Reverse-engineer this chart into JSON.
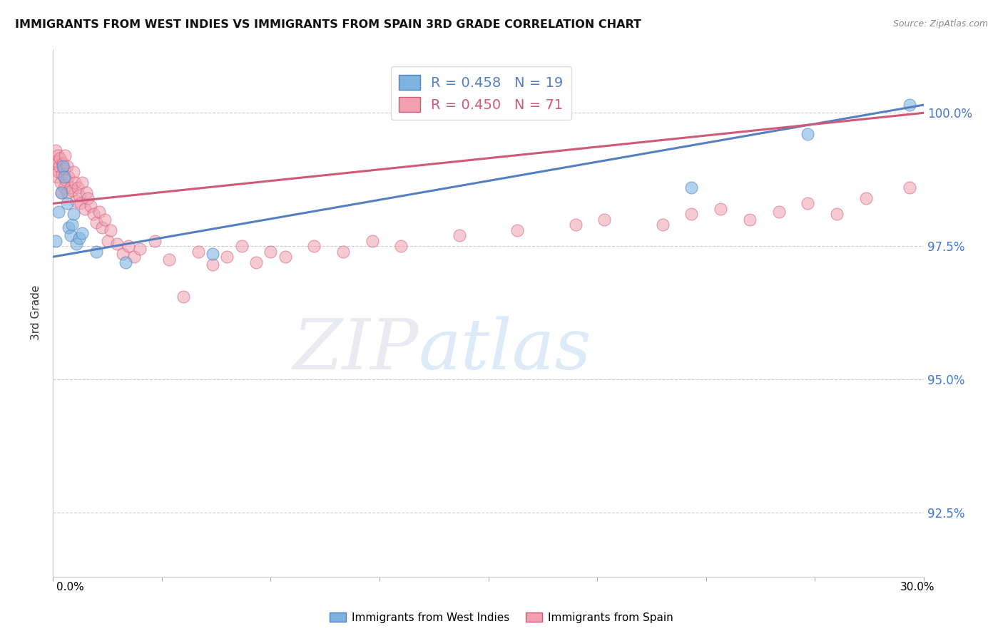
{
  "title": "IMMIGRANTS FROM WEST INDIES VS IMMIGRANTS FROM SPAIN 3RD GRADE CORRELATION CHART",
  "source": "Source: ZipAtlas.com",
  "ylabel": "3rd Grade",
  "y_ticks": [
    92.5,
    95.0,
    97.5,
    100.0
  ],
  "y_tick_labels": [
    "92.5%",
    "95.0%",
    "97.5%",
    "100.0%"
  ],
  "xlim": [
    0.0,
    30.0
  ],
  "ylim": [
    91.3,
    101.2
  ],
  "blue_R": 0.458,
  "blue_N": 19,
  "pink_R": 0.45,
  "pink_N": 71,
  "blue_color": "#7EB3E0",
  "pink_color": "#F0A0B0",
  "blue_line_color": "#5580C0",
  "pink_line_color": "#D05878",
  "legend_label_blue": "Immigrants from West Indies",
  "legend_label_pink": "Immigrants from Spain",
  "watermark_zip": "ZIP",
  "watermark_atlas": "atlas",
  "blue_x": [
    0.1,
    0.2,
    0.3,
    0.35,
    0.4,
    0.5,
    0.55,
    0.6,
    0.65,
    0.7,
    0.8,
    0.9,
    1.0,
    1.5,
    2.5,
    5.5,
    22.0,
    26.0,
    29.5
  ],
  "blue_y": [
    97.6,
    98.15,
    98.5,
    99.0,
    98.8,
    98.3,
    97.85,
    97.7,
    97.9,
    98.1,
    97.55,
    97.65,
    97.75,
    97.4,
    97.2,
    97.35,
    98.6,
    99.6,
    100.15
  ],
  "pink_x": [
    0.05,
    0.1,
    0.12,
    0.15,
    0.18,
    0.2,
    0.22,
    0.25,
    0.28,
    0.3,
    0.32,
    0.35,
    0.38,
    0.4,
    0.42,
    0.45,
    0.48,
    0.5,
    0.55,
    0.6,
    0.65,
    0.7,
    0.75,
    0.8,
    0.85,
    0.9,
    0.95,
    1.0,
    1.1,
    1.15,
    1.2,
    1.3,
    1.4,
    1.5,
    1.6,
    1.7,
    1.8,
    1.9,
    2.0,
    2.2,
    2.4,
    2.6,
    2.8,
    3.0,
    3.5,
    4.0,
    4.5,
    5.0,
    5.5,
    6.0,
    6.5,
    7.0,
    7.5,
    8.0,
    9.0,
    10.0,
    11.0,
    12.0,
    14.0,
    16.0,
    18.0,
    19.0,
    21.0,
    22.0,
    23.0,
    24.0,
    25.0,
    26.0,
    27.0,
    28.0,
    29.5
  ],
  "pink_y": [
    99.05,
    99.3,
    99.1,
    98.8,
    99.2,
    98.9,
    99.0,
    99.15,
    98.7,
    98.5,
    98.85,
    99.05,
    98.6,
    98.95,
    99.2,
    98.75,
    98.5,
    99.0,
    98.8,
    98.6,
    98.55,
    98.9,
    98.7,
    98.35,
    98.6,
    98.45,
    98.3,
    98.7,
    98.2,
    98.5,
    98.4,
    98.25,
    98.1,
    97.95,
    98.15,
    97.85,
    98.0,
    97.6,
    97.8,
    97.55,
    97.35,
    97.5,
    97.3,
    97.45,
    97.6,
    97.25,
    96.55,
    97.4,
    97.15,
    97.3,
    97.5,
    97.2,
    97.4,
    97.3,
    97.5,
    97.4,
    97.6,
    97.5,
    97.7,
    97.8,
    97.9,
    98.0,
    97.9,
    98.1,
    98.2,
    98.0,
    98.15,
    98.3,
    98.1,
    98.4,
    98.6
  ],
  "blue_trendline_x": [
    0.0,
    30.0
  ],
  "blue_trendline_y": [
    97.3,
    100.15
  ],
  "pink_trendline_x": [
    0.0,
    30.0
  ],
  "pink_trendline_y": [
    98.3,
    100.0
  ]
}
